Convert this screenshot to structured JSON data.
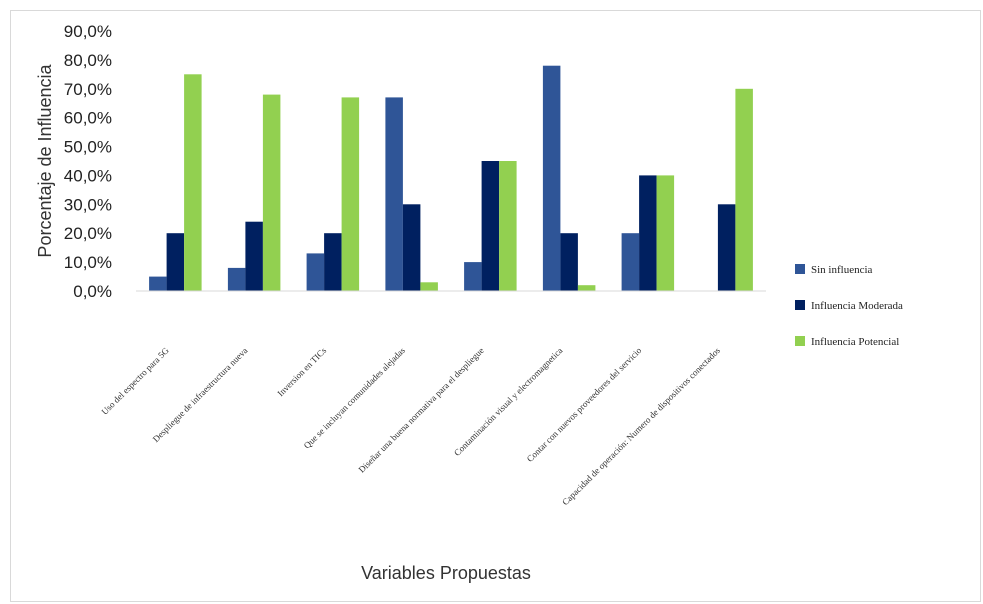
{
  "chart_data": {
    "type": "bar",
    "title": "",
    "ylabel": "Porcentaje de Influencia",
    "xlabel": "Variables Propuestas",
    "ylim": [
      0,
      90
    ],
    "yticks": [
      "0,0%",
      "10,0%",
      "20,0%",
      "30,0%",
      "40,0%",
      "50,0%",
      "60,0%",
      "70,0%",
      "80,0%",
      "90,0%"
    ],
    "grid": false,
    "legend_position": "right",
    "categories": [
      "Uso del espectro para 5G",
      "Despliegue de infraestructura nueva",
      "Inversion en TICs",
      "Que se incluyan comunidades alejadas",
      "Diseñar una buena normativa para el despliegue",
      "Contaminación visual y electromagnetica",
      "Contar con nuevos proveedores del servicio",
      "Capacidad de operación: Numero de dispositivos conectados"
    ],
    "series": [
      {
        "name": "Sin influencia",
        "color": "#2f5597",
        "values": [
          5,
          8,
          13,
          67,
          10,
          78,
          20,
          0
        ]
      },
      {
        "name": "Influencia Moderada",
        "color": "#002060",
        "values": [
          20,
          24,
          20,
          30,
          45,
          20,
          40,
          30
        ]
      },
      {
        "name": "Influencia Potencial",
        "color": "#92d050",
        "values": [
          75,
          68,
          67,
          3,
          45,
          2,
          40,
          70
        ]
      }
    ]
  }
}
